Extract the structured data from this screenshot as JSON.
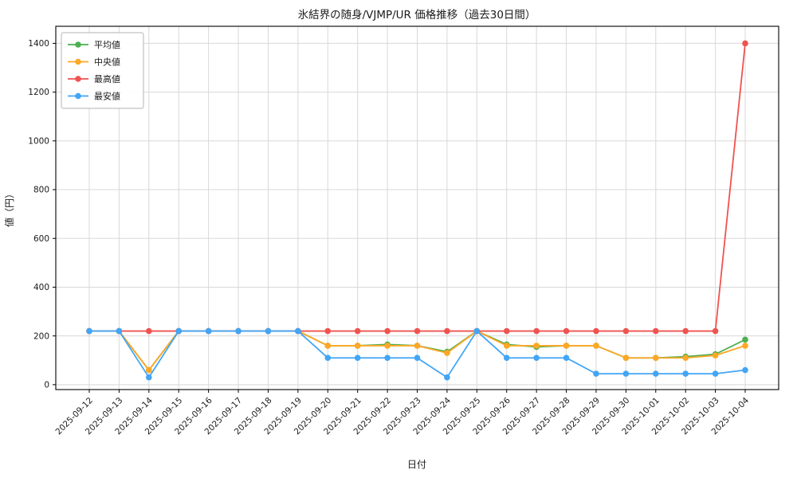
{
  "chart_data": {
    "type": "line",
    "title": "氷結界の随身/VJMP/UR 価格推移（過去30日間）",
    "xlabel": "日付",
    "ylabel": "値（円）",
    "ylim": [
      -20,
      1470
    ],
    "yticks": [
      0,
      200,
      400,
      600,
      800,
      1000,
      1200,
      1400
    ],
    "grid": true,
    "legend_position": "upper left",
    "categories": [
      "2025-09-12",
      "2025-09-13",
      "2025-09-14",
      "2025-09-15",
      "2025-09-16",
      "2025-09-17",
      "2025-09-18",
      "2025-09-19",
      "2025-09-20",
      "2025-09-21",
      "2025-09-22",
      "2025-09-23",
      "2025-09-24",
      "2025-09-25",
      "2025-09-26",
      "2025-09-27",
      "2025-09-28",
      "2025-09-29",
      "2025-09-30",
      "2025-10-01",
      "2025-10-02",
      "2025-10-03",
      "2025-10-04"
    ],
    "series": [
      {
        "name": "平均値",
        "color": "#4caf50",
        "values": [
          220,
          220,
          60,
          220,
          220,
          220,
          220,
          220,
          160,
          160,
          165,
          160,
          135,
          220,
          165,
          155,
          160,
          160,
          110,
          110,
          115,
          125,
          185
        ]
      },
      {
        "name": "中央値",
        "color": "#ffa726",
        "values": [
          220,
          220,
          60,
          220,
          220,
          220,
          220,
          220,
          160,
          160,
          160,
          160,
          130,
          220,
          160,
          160,
          160,
          160,
          110,
          110,
          110,
          120,
          160
        ]
      },
      {
        "name": "最高値",
        "color": "#ef5350",
        "values": [
          220,
          220,
          220,
          220,
          220,
          220,
          220,
          220,
          220,
          220,
          220,
          220,
          220,
          220,
          220,
          220,
          220,
          220,
          220,
          220,
          220,
          220,
          1400
        ]
      },
      {
        "name": "最安値",
        "color": "#42a5f5",
        "values": [
          220,
          220,
          30,
          220,
          220,
          220,
          220,
          220,
          110,
          110,
          110,
          110,
          30,
          220,
          110,
          110,
          110,
          45,
          45,
          45,
          45,
          45,
          60
        ]
      }
    ],
    "colors": {
      "grid": "#d8d8d8",
      "spine": "#000000",
      "legend_border": "#b3b3b3",
      "background": "#ffffff"
    }
  }
}
